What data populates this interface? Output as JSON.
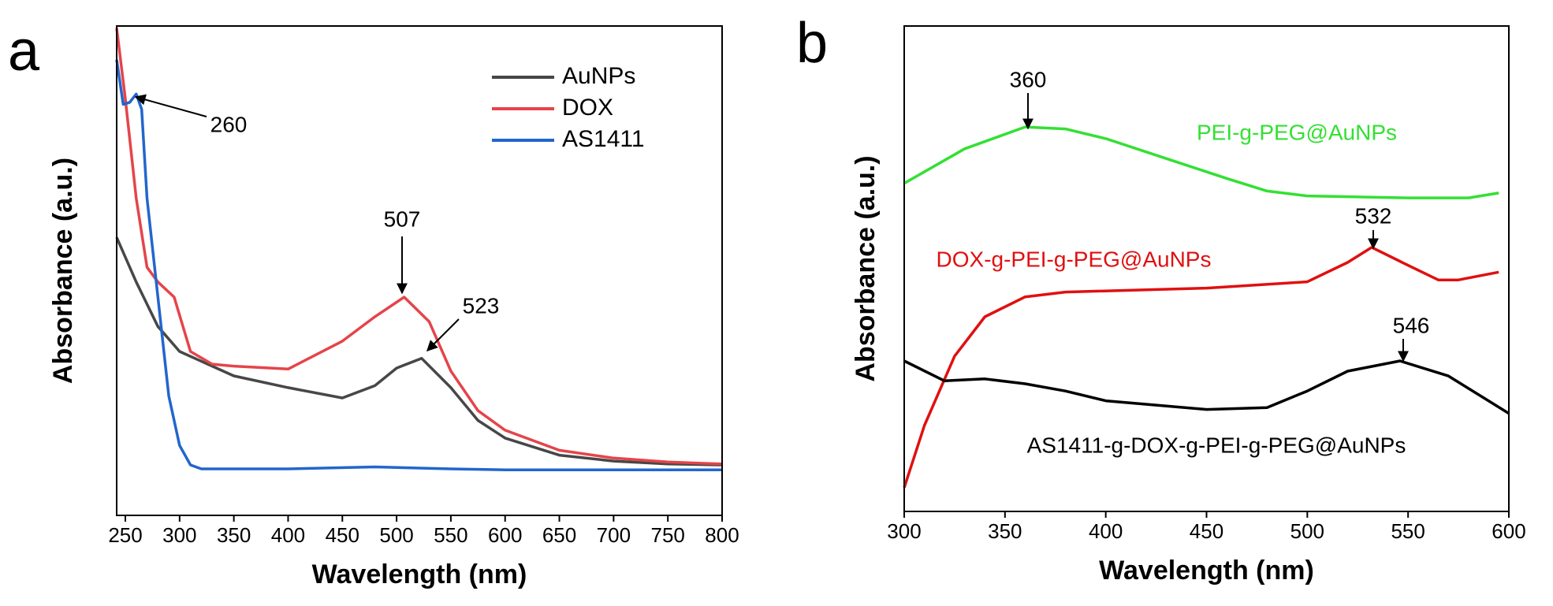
{
  "chart_data": [
    {
      "type": "line",
      "panel": "a",
      "x_label": "Wavelength (nm)",
      "y_label": "Absorbance (a.u.)",
      "xlim": [
        242,
        800
      ],
      "xticks": [
        250,
        300,
        350,
        400,
        450,
        500,
        550,
        600,
        650,
        700,
        750,
        800
      ],
      "ylim": [
        0,
        1
      ],
      "series": [
        {
          "name": "AuNPs",
          "color": "#474747",
          "x": [
            242,
            260,
            280,
            300,
            350,
            400,
            450,
            480,
            500,
            523,
            550,
            575,
            600,
            650,
            700,
            750,
            800
          ],
          "values": [
            0.568,
            0.477,
            0.386,
            0.335,
            0.285,
            0.261,
            0.24,
            0.265,
            0.301,
            0.321,
            0.261,
            0.194,
            0.158,
            0.123,
            0.111,
            0.105,
            0.103
          ]
        },
        {
          "name": "DOX",
          "color": "#e5444a",
          "x": [
            242,
            250,
            260,
            270,
            280,
            295,
            310,
            330,
            350,
            400,
            450,
            480,
            507,
            530,
            550,
            575,
            600,
            650,
            700,
            750,
            800
          ],
          "values": [
            0.996,
            0.851,
            0.648,
            0.507,
            0.477,
            0.446,
            0.335,
            0.309,
            0.305,
            0.299,
            0.356,
            0.406,
            0.446,
            0.396,
            0.295,
            0.214,
            0.174,
            0.133,
            0.117,
            0.109,
            0.105
          ]
        },
        {
          "name": "AS1411",
          "color": "#2266cc",
          "x": [
            242,
            248,
            254,
            260,
            265,
            270,
            280,
            290,
            300,
            310,
            320,
            400,
            480,
            550,
            600,
            800
          ],
          "values": [
            0.931,
            0.84,
            0.844,
            0.861,
            0.83,
            0.648,
            0.446,
            0.244,
            0.143,
            0.103,
            0.095,
            0.095,
            0.099,
            0.095,
            0.093,
            0.093
          ]
        }
      ],
      "annotations": [
        {
          "text": "260"
        },
        {
          "text": "507"
        },
        {
          "text": "523"
        }
      ]
    },
    {
      "type": "line",
      "panel": "b",
      "x_label": "Wavelength (nm)",
      "y_label": "Absorbance (a.u.)",
      "xlim": [
        300,
        600
      ],
      "xticks": [
        300,
        350,
        400,
        450,
        500,
        550,
        600
      ],
      "ylim": [
        0,
        1
      ],
      "series": [
        {
          "name": "PEI-g-PEG@AuNPs",
          "color": "#33e033",
          "x": [
            300,
            330,
            360,
            380,
            400,
            430,
            460,
            480,
            500,
            550,
            580,
            595
          ],
          "values": [
            0.676,
            0.747,
            0.792,
            0.788,
            0.768,
            0.727,
            0.686,
            0.66,
            0.65,
            0.646,
            0.646,
            0.656
          ]
        },
        {
          "name": "DOX-g-PEI-g-PEG@AuNPs",
          "color": "#e01010",
          "x": [
            300,
            310,
            325,
            340,
            360,
            380,
            450,
            500,
            520,
            532,
            550,
            565,
            575,
            595
          ],
          "values": [
            0.049,
            0.177,
            0.32,
            0.401,
            0.442,
            0.452,
            0.46,
            0.473,
            0.513,
            0.544,
            0.507,
            0.477,
            0.477,
            0.493
          ]
        },
        {
          "name": "AS1411-g-DOX-g-PEI-g-PEG@AuNPs",
          "color": "#000000",
          "x": [
            300,
            320,
            340,
            360,
            380,
            400,
            450,
            480,
            500,
            520,
            546,
            570,
            600
          ],
          "values": [
            0.31,
            0.269,
            0.273,
            0.263,
            0.248,
            0.228,
            0.21,
            0.214,
            0.248,
            0.289,
            0.31,
            0.279,
            0.202
          ]
        }
      ],
      "annotations": [
        {
          "text": "360"
        },
        {
          "text": "532"
        },
        {
          "text": "546"
        }
      ]
    }
  ]
}
